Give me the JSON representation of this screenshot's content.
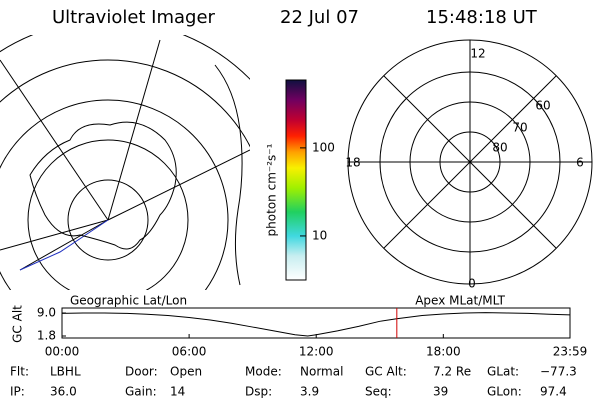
{
  "header": {
    "instrument": "Ultraviolet Imager",
    "date": "22 Jul 07",
    "time": "15:48:18 UT"
  },
  "colorbar": {
    "label": "photon cm⁻²s⁻¹",
    "log": true,
    "lim": [
      3.16,
      590
    ],
    "ticks": [
      10,
      100
    ]
  },
  "left_map": {
    "title": "Geographic Lat/Lon"
  },
  "right_map": {
    "title": "Apex MLat/MLT",
    "mlt_labels": [
      12,
      6,
      0,
      18
    ],
    "lat_labels": [
      80,
      70,
      60
    ]
  },
  "altitude_plot": {
    "y_label": "GC Alt",
    "xlim": [
      0,
      23.98
    ],
    "ylim": [
      1.8,
      9.0
    ],
    "yticks": [
      {
        "value": 9.0,
        "label": "9.0"
      },
      {
        "value": 1.8,
        "label": "1.8"
      }
    ],
    "xticks": [
      {
        "value": 0,
        "label": "00:00"
      },
      {
        "value": 6,
        "label": "06:00"
      },
      {
        "value": 12,
        "label": "12:00"
      },
      {
        "value": 18,
        "label": "18:00"
      },
      {
        "value": 23.98,
        "label": "23:59"
      }
    ],
    "x": [
      0,
      1,
      2,
      3,
      4,
      5,
      6,
      7,
      8,
      9,
      10,
      11,
      11.6,
      12,
      13,
      14,
      15,
      15.8,
      17,
      18,
      19,
      20,
      21,
      22,
      23,
      23.98
    ],
    "values": [
      8.9,
      9.0,
      9.0,
      8.9,
      8.6,
      8.2,
      7.6,
      6.8,
      5.8,
      4.6,
      3.4,
      2.2,
      1.8,
      2.2,
      3.4,
      4.8,
      6.4,
      7.2,
      8.2,
      8.7,
      9.0,
      9.1,
      9.0,
      8.9,
      8.6,
      8.4
    ],
    "marker_color": "#d00000"
  },
  "info": [
    [
      "Flt:",
      "LBHL"
    ],
    [
      "IP:",
      "36.0"
    ],
    [
      "Door:",
      "Open"
    ],
    [
      "Gain:",
      "14"
    ],
    [
      "Mode:",
      "Normal"
    ],
    [
      "Dsp:",
      "3.9"
    ],
    [
      "GC Alt:",
      "7.2 Re"
    ],
    [
      "Seq:",
      "39"
    ],
    [
      "GLat:",
      "−77.3"
    ],
    [
      "GLon:",
      "97.4"
    ]
  ]
}
